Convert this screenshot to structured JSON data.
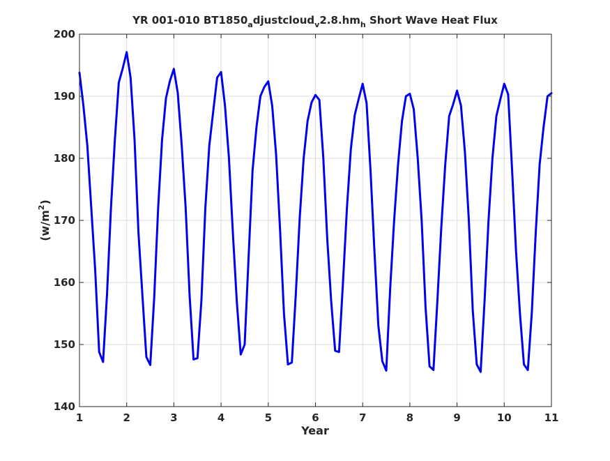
{
  "chart_data": {
    "type": "line",
    "title_parts": [
      "YR 001-010 BT1850",
      "a",
      "djustcloud",
      "v",
      "2.8.hm",
      "h",
      " Short Wave Heat Flux"
    ],
    "xlabel": "Year",
    "ylabel": "(w/m",
    "ylabel_sup": "2",
    "ylabel_close": ")",
    "xlim": [
      1,
      11
    ],
    "ylim": [
      140,
      200
    ],
    "xticks": [
      1,
      2,
      3,
      4,
      5,
      6,
      7,
      8,
      9,
      10,
      11
    ],
    "xtick_labels": [
      "1",
      "2",
      "3",
      "4",
      "5",
      "6",
      "7",
      "8",
      "9",
      "10",
      "11"
    ],
    "yticks": [
      140,
      150,
      160,
      170,
      180,
      190,
      200
    ],
    "ytick_labels": [
      "140",
      "150",
      "160",
      "170",
      "180",
      "190",
      "200"
    ],
    "grid": true,
    "legend": "none",
    "series": [
      {
        "color": "#0000ee",
        "x": [
          1.0,
          1.083,
          1.167,
          1.25,
          1.333,
          1.417,
          1.5,
          1.583,
          1.667,
          1.75,
          1.833,
          1.917,
          2.0,
          2.083,
          2.167,
          2.25,
          2.333,
          2.417,
          2.5,
          2.583,
          2.667,
          2.75,
          2.833,
          2.917,
          3.0,
          3.083,
          3.167,
          3.25,
          3.333,
          3.417,
          3.5,
          3.583,
          3.667,
          3.75,
          3.833,
          3.917,
          4.0,
          4.083,
          4.167,
          4.25,
          4.333,
          4.417,
          4.5,
          4.583,
          4.667,
          4.75,
          4.833,
          4.917,
          5.0,
          5.083,
          5.167,
          5.25,
          5.333,
          5.417,
          5.5,
          5.583,
          5.667,
          5.75,
          5.833,
          5.917,
          6.0,
          6.083,
          6.167,
          6.25,
          6.333,
          6.417,
          6.5,
          6.583,
          6.667,
          6.75,
          6.833,
          6.917,
          7.0,
          7.083,
          7.167,
          7.25,
          7.333,
          7.417,
          7.5,
          7.583,
          7.667,
          7.75,
          7.833,
          7.917,
          8.0,
          8.083,
          8.167,
          8.25,
          8.333,
          8.417,
          8.5,
          8.583,
          8.667,
          8.75,
          8.833,
          8.917,
          9.0,
          9.083,
          9.167,
          9.25,
          9.333,
          9.417,
          9.5,
          9.583,
          9.667,
          9.75,
          9.833,
          9.917,
          10.0,
          10.083,
          10.167,
          10.25,
          10.333,
          10.417,
          10.5,
          10.583,
          10.667,
          10.75,
          10.833,
          10.917,
          11.0
        ],
        "y": [
          193.8,
          188.5,
          182.0,
          172.0,
          162.0,
          148.8,
          147.2,
          158.0,
          172.0,
          183.0,
          192.2,
          194.5,
          197.1,
          193.0,
          183.0,
          168.0,
          158.0,
          148.0,
          146.7,
          157.5,
          172.0,
          183.0,
          189.7,
          192.5,
          194.4,
          190.5,
          182.0,
          172.0,
          158.0,
          147.6,
          147.8,
          157.0,
          172.0,
          182.0,
          187.5,
          193.0,
          193.9,
          188.5,
          180.0,
          168.0,
          157.0,
          148.4,
          150.0,
          164.0,
          178.0,
          185.0,
          190.0,
          191.5,
          192.4,
          188.5,
          180.5,
          168.5,
          155.0,
          146.8,
          147.1,
          158.0,
          170.5,
          180.0,
          186.0,
          189.0,
          190.2,
          189.4,
          180.0,
          167.0,
          157.0,
          149.0,
          148.8,
          160.0,
          172.0,
          181.5,
          187.0,
          189.6,
          192.0,
          188.9,
          178.0,
          165.0,
          153.0,
          147.3,
          145.8,
          159.0,
          170.0,
          179.0,
          186.0,
          190.0,
          190.4,
          187.9,
          180.0,
          170.0,
          156.0,
          146.5,
          145.9,
          157.0,
          169.0,
          179.0,
          186.8,
          188.7,
          190.9,
          188.5,
          181.0,
          170.0,
          155.5,
          146.8,
          145.6,
          157.0,
          170.0,
          180.0,
          186.8,
          189.5,
          192.0,
          190.3,
          178.0,
          165.0,
          155.0,
          146.8,
          145.9,
          155.0,
          168.0,
          179.0,
          185.0,
          190.0,
          190.5
        ]
      }
    ]
  }
}
